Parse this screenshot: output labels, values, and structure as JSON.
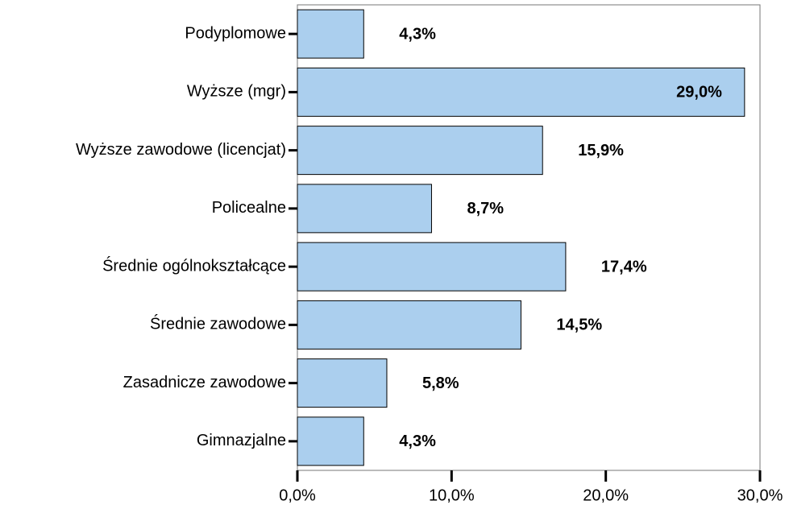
{
  "chart_data": {
    "type": "bar",
    "orientation": "horizontal",
    "categories": [
      "Podyplomowe",
      "Wyższe (mgr)",
      "Wyższe zawodowe (licencjat)",
      "Policealne",
      "Średnie ogólnokształcące",
      "Średnie zawodowe",
      "Zasadnicze zawodowe",
      "Gimnazjalne"
    ],
    "values": [
      4.3,
      29.0,
      15.9,
      8.7,
      17.4,
      14.5,
      5.8,
      4.3
    ],
    "value_labels": [
      "4,3%",
      "29,0%",
      "15,9%",
      "8,7%",
      "17,4%",
      "14,5%",
      "5,8%",
      "4,3%"
    ],
    "color": "#abcfee",
    "xlim": [
      0,
      30
    ],
    "xticks": [
      {
        "value": 0,
        "label": "0,0%"
      },
      {
        "value": 10,
        "label": "10,0%"
      },
      {
        "value": 20,
        "label": "20,0%"
      },
      {
        "value": 30,
        "label": "30,0%"
      }
    ]
  }
}
